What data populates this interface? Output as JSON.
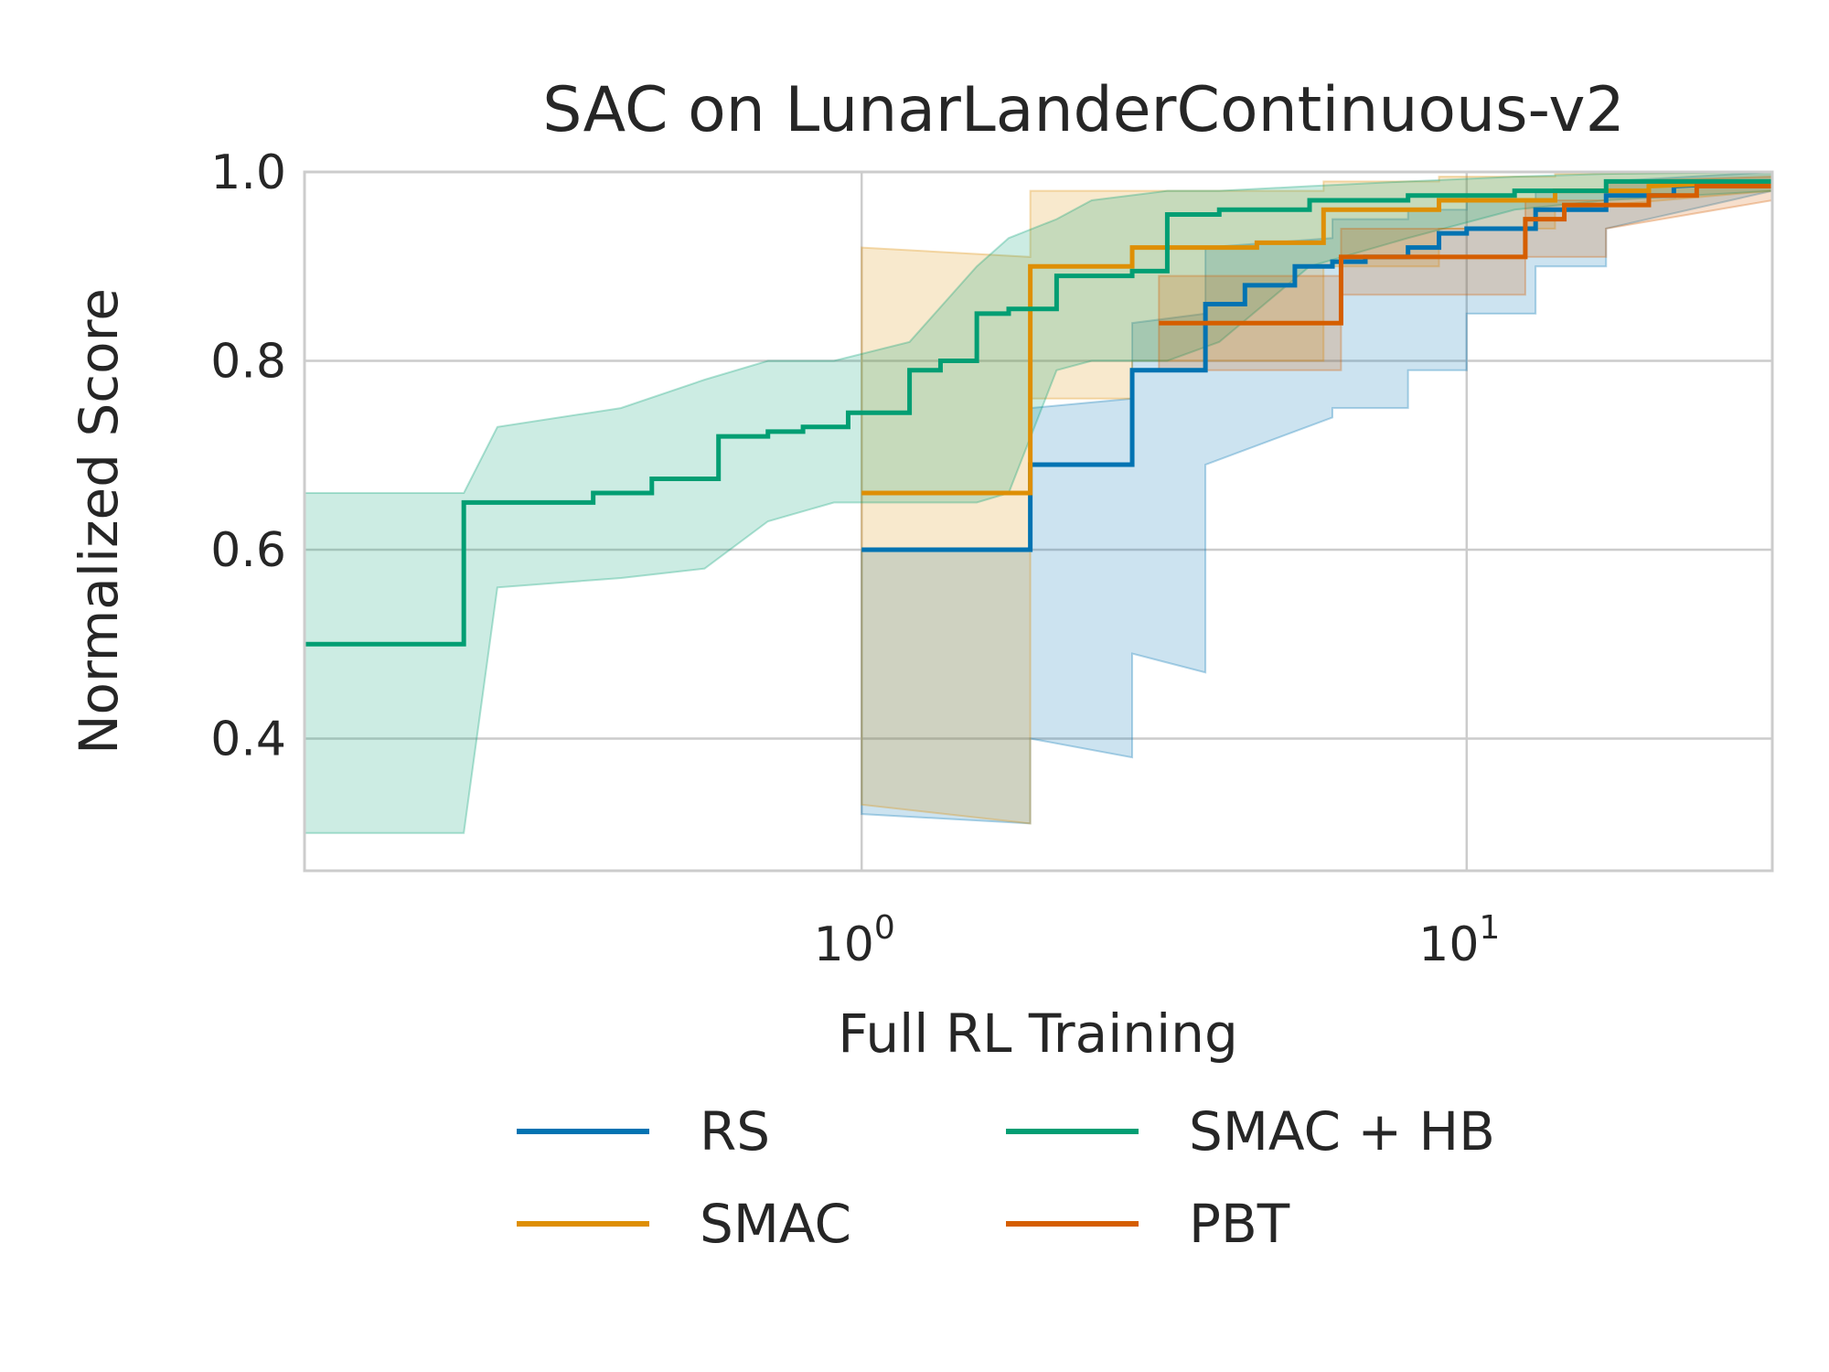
{
  "chart_data": {
    "type": "line",
    "title": "SAC on LunarLanderContinuous-v2",
    "xlabel": "Full RL Training",
    "ylabel": "Normalized Score",
    "xscale": "log",
    "xlim": [
      0.12,
      32
    ],
    "ylim": [
      0.26,
      1.0
    ],
    "x_ticks": [
      {
        "value": 1,
        "base": "10",
        "exp": "0"
      },
      {
        "value": 10,
        "base": "10",
        "exp": "1"
      }
    ],
    "y_ticks": [
      {
        "value": 0.4,
        "label": "0.4"
      },
      {
        "value": 0.6,
        "label": "0.6"
      },
      {
        "value": 0.8,
        "label": "0.8"
      },
      {
        "value": 1.0,
        "label": "1.0"
      }
    ],
    "grid": true,
    "legend_position": "bottom",
    "series": [
      {
        "name": "RS",
        "color": "#0173b2",
        "x": [
          1.0,
          1.9,
          1.9,
          2.8,
          2.8,
          3.7,
          3.7,
          4.3,
          4.3,
          5.2,
          5.2,
          6.0,
          6.0,
          6.8,
          6.8,
          8.0,
          8.0,
          9.0,
          9.0,
          10.0,
          10.0,
          13.0,
          13.0,
          17.0,
          17.0,
          22.0,
          22.0,
          32.0
        ],
        "y": [
          0.6,
          0.6,
          0.69,
          0.69,
          0.79,
          0.79,
          0.86,
          0.86,
          0.88,
          0.88,
          0.9,
          0.9,
          0.905,
          0.905,
          0.91,
          0.91,
          0.92,
          0.92,
          0.935,
          0.935,
          0.94,
          0.94,
          0.96,
          0.96,
          0.975,
          0.975,
          0.985,
          0.99
        ],
        "band_x": [
          1.0,
          1.9,
          1.9,
          2.8,
          2.8,
          3.7,
          3.7,
          6.0,
          6.0,
          8.0,
          8.0,
          10.0,
          10.0,
          13.0,
          13.0,
          17.0,
          17.0,
          32.0
        ],
        "band_low": [
          0.32,
          0.31,
          0.4,
          0.38,
          0.49,
          0.47,
          0.69,
          0.74,
          0.75,
          0.75,
          0.79,
          0.79,
          0.85,
          0.85,
          0.9,
          0.9,
          0.94,
          0.98
        ],
        "band_high": [
          0.6,
          0.6,
          0.75,
          0.76,
          0.84,
          0.85,
          0.92,
          0.93,
          0.95,
          0.95,
          0.96,
          0.96,
          0.97,
          0.97,
          0.98,
          0.98,
          0.99,
          1.0
        ]
      },
      {
        "name": "SMAC",
        "color": "#de8f05",
        "x": [
          1.0,
          1.9,
          1.9,
          2.4,
          2.4,
          2.8,
          2.8,
          4.5,
          4.5,
          5.8,
          5.8,
          9.0,
          9.0,
          14.0,
          14.0,
          20.0,
          20.0,
          32.0
        ],
        "y": [
          0.66,
          0.66,
          0.9,
          0.9,
          0.9,
          0.9,
          0.92,
          0.92,
          0.925,
          0.925,
          0.96,
          0.96,
          0.97,
          0.97,
          0.98,
          0.98,
          0.985,
          0.99
        ],
        "band_x": [
          1.0,
          1.9,
          1.9,
          2.8,
          2.8,
          5.8,
          5.8,
          9.0,
          9.0,
          14.0,
          14.0,
          32.0
        ],
        "band_low": [
          0.33,
          0.31,
          0.76,
          0.76,
          0.8,
          0.8,
          0.9,
          0.9,
          0.94,
          0.94,
          0.96,
          0.98
        ],
        "band_high": [
          0.92,
          0.91,
          0.98,
          0.98,
          0.98,
          0.98,
          0.99,
          0.99,
          0.995,
          0.995,
          0.998,
          1.0
        ]
      },
      {
        "name": "SMAC + HB",
        "color": "#029e73",
        "x": [
          0.12,
          0.22,
          0.22,
          0.32,
          0.32,
          0.36,
          0.36,
          0.45,
          0.45,
          0.58,
          0.58,
          0.7,
          0.7,
          0.8,
          0.8,
          0.95,
          0.95,
          1.2,
          1.2,
          1.35,
          1.35,
          1.55,
          1.55,
          1.75,
          1.75,
          2.1,
          2.1,
          2.4,
          2.4,
          2.8,
          2.8,
          3.2,
          3.2,
          3.9,
          3.9,
          5.5,
          5.5,
          8.0,
          8.0,
          12.0,
          12.0,
          17.0,
          17.0,
          32.0
        ],
        "y": [
          0.5,
          0.5,
          0.65,
          0.65,
          0.65,
          0.65,
          0.66,
          0.66,
          0.675,
          0.675,
          0.72,
          0.72,
          0.725,
          0.725,
          0.73,
          0.73,
          0.745,
          0.745,
          0.79,
          0.79,
          0.8,
          0.8,
          0.85,
          0.85,
          0.855,
          0.855,
          0.89,
          0.89,
          0.89,
          0.89,
          0.895,
          0.895,
          0.955,
          0.955,
          0.96,
          0.96,
          0.97,
          0.97,
          0.975,
          0.975,
          0.98,
          0.98,
          0.99,
          0.99
        ],
        "band_x": [
          0.12,
          0.22,
          0.25,
          0.4,
          0.55,
          0.7,
          0.9,
          1.2,
          1.55,
          1.75,
          2.1,
          2.4,
          3.2,
          3.9,
          5.5,
          8.0,
          12.0,
          17.0,
          32.0
        ],
        "band_low": [
          0.3,
          0.3,
          0.56,
          0.57,
          0.58,
          0.63,
          0.65,
          0.65,
          0.65,
          0.66,
          0.79,
          0.8,
          0.8,
          0.82,
          0.9,
          0.93,
          0.96,
          0.97,
          0.98
        ],
        "band_high": [
          0.66,
          0.66,
          0.73,
          0.75,
          0.78,
          0.8,
          0.8,
          0.82,
          0.9,
          0.93,
          0.95,
          0.97,
          0.98,
          0.98,
          0.985,
          0.99,
          0.995,
          0.998,
          1.0
        ]
      },
      {
        "name": "PBT",
        "color": "#d55e00",
        "x": [
          3.1,
          4.2,
          4.2,
          6.2,
          6.2,
          12.5,
          12.5,
          14.5,
          14.5,
          20.0,
          20.0,
          24.0,
          24.0,
          32.0
        ],
        "y": [
          0.84,
          0.84,
          0.84,
          0.84,
          0.91,
          0.91,
          0.95,
          0.95,
          0.965,
          0.965,
          0.975,
          0.975,
          0.985,
          0.985
        ],
        "band_x": [
          3.1,
          6.2,
          6.2,
          12.5,
          12.5,
          17.0,
          17.0,
          32.0
        ],
        "band_low": [
          0.79,
          0.79,
          0.87,
          0.87,
          0.91,
          0.91,
          0.94,
          0.97
        ],
        "band_high": [
          0.89,
          0.89,
          0.94,
          0.94,
          0.97,
          0.97,
          0.99,
          0.995
        ]
      }
    ]
  }
}
